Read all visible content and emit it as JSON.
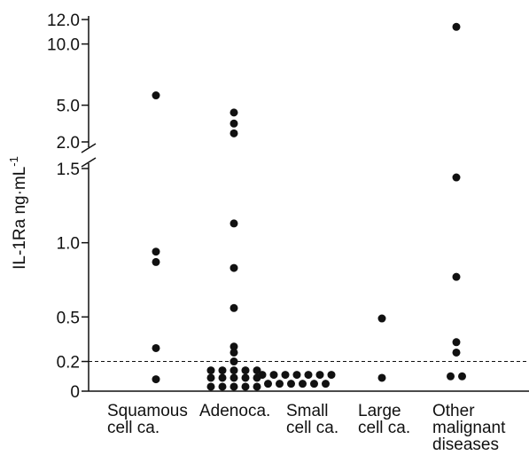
{
  "chart_data": {
    "type": "dot",
    "ylabel": {
      "text": "IL-1Ra ng·mL",
      "sup": "-1"
    },
    "categories": [
      [
        "Squamous",
        "cell ca."
      ],
      [
        "Adenoca."
      ],
      [
        "Small",
        "cell ca."
      ],
      [
        "Large",
        "cell ca."
      ],
      [
        "Other",
        "malignant",
        "diseases"
      ]
    ],
    "values": [
      [
        5.8,
        0.94,
        0.87,
        0.29,
        0.08
      ],
      [
        4.4,
        3.5,
        2.7,
        1.13,
        0.83,
        0.56,
        0.3,
        0.26,
        0.2,
        0.14,
        0.14,
        0.14,
        0.14,
        0.14,
        0.09,
        0.09,
        0.09,
        0.09,
        0.09,
        0.03,
        0.03,
        0.03,
        0.03,
        0.03
      ],
      [
        0.11,
        0.11,
        0.11,
        0.11,
        0.11,
        0.11,
        0.11,
        0.05,
        0.05,
        0.05,
        0.05,
        0.05,
        0.05
      ],
      [
        0.49,
        0.09
      ],
      [
        11.4,
        1.44,
        0.77,
        0.33,
        0.26,
        0.1,
        0.1
      ]
    ],
    "color": "#111111",
    "ylim": [
      0,
      1.5
    ],
    "yticks": [
      0,
      0.2,
      0.5,
      {
        "value": 1,
        "label": "1.0"
      },
      1.5
    ],
    "upper_ylim": [
      2,
      12
    ],
    "upper_yticks": [
      {
        "value": 2,
        "label": "2.0"
      },
      {
        "value": 5,
        "label": "5.0"
      },
      {
        "value": 10,
        "label": "10.0"
      },
      {
        "value": 12,
        "label": "12.0"
      }
    ],
    "threshold": 0.2
  }
}
